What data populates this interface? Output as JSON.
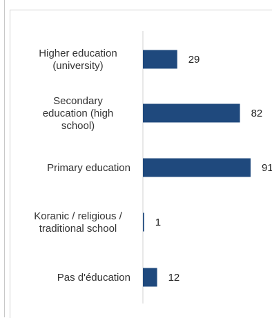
{
  "chart_data": {
    "type": "bar",
    "orientation": "horizontal",
    "categories": [
      [
        "Higher education",
        "(university)"
      ],
      [
        "Secondary",
        "education (high",
        "school)"
      ],
      [
        "Primary education"
      ],
      [
        "Koranic / religious /",
        "traditional school"
      ],
      [
        "Pas d'éducation"
      ]
    ],
    "values": [
      29,
      82,
      91,
      1,
      12
    ],
    "value_labels": [
      "29",
      "82",
      "91",
      "1",
      "12"
    ],
    "bar_color": "#1f497d",
    "xlim": [
      0,
      91
    ],
    "grid": false,
    "legend": "none"
  }
}
